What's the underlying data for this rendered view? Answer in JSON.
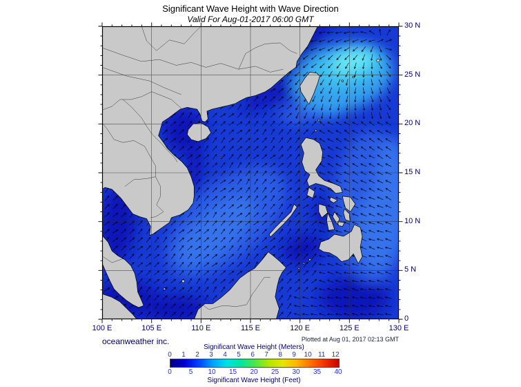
{
  "header": {
    "title": "Significant Wave Height with Wave Direction",
    "subtitle": "Valid For Aug-01-2017 06:00 GMT"
  },
  "map": {
    "x_ticks": [
      "100 E",
      "105 E",
      "110 E",
      "115 E",
      "120 E",
      "125 E",
      "130 E"
    ],
    "y_ticks": [
      "30 N",
      "25 N",
      "20 N",
      "15 N",
      "10 N",
      "5 N",
      "0"
    ],
    "lon_range": [
      100,
      130
    ],
    "lat_range": [
      0,
      30
    ],
    "ocean_palette": {
      "base": "#173ad4",
      "calm": "#0716b8",
      "moderate": "#2a5ce4",
      "mid2": "#3572ec",
      "rough": "#35a0ee",
      "cyan": "#3cc0f0",
      "bright": "#66e6f4"
    },
    "land_color": "#c9c9c9",
    "grid_color": "#2f2f2f"
  },
  "credits": {
    "left": "oceanweather inc.",
    "right": "Plotted at Aug 01, 2017 02:13 GMT"
  },
  "colorbar": {
    "title_top": "Significant Wave Height (Meters)",
    "title_bottom": "Significant Wave Height (Feet)",
    "meters_ticks": [
      0,
      1,
      2,
      3,
      4,
      5,
      6,
      7,
      8,
      9,
      10,
      11,
      12
    ],
    "feet_ticks": [
      0,
      5,
      10,
      15,
      20,
      25,
      30,
      35,
      40
    ],
    "gradient": [
      "#000084",
      "#0000d2",
      "#0041ff",
      "#00a0ff",
      "#00e1e6",
      "#00e6a0",
      "#4be64b",
      "#b4e600",
      "#e6e600",
      "#ffb400",
      "#ff6e00",
      "#f03200",
      "#c80000"
    ],
    "label_color": "#00006e",
    "number_color": "#2233cc"
  }
}
